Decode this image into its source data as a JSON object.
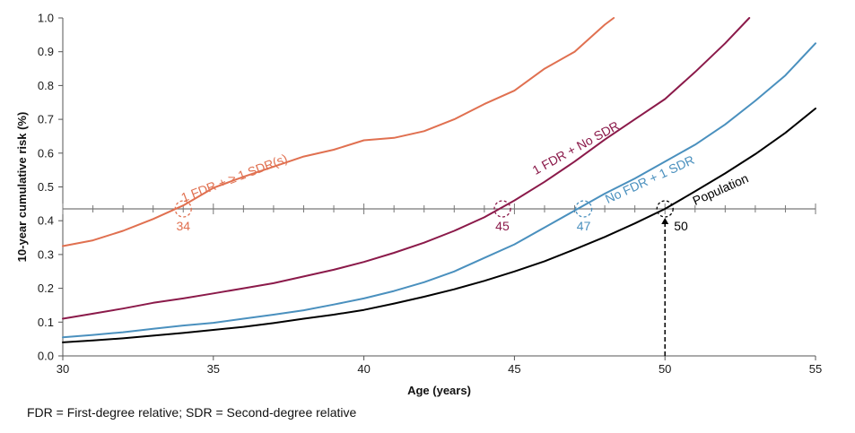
{
  "chart_data": {
    "type": "line",
    "xlabel": "Age (years)",
    "ylabel": "10-year cumulative risk (%)",
    "xlim": [
      30,
      55
    ],
    "ylim": [
      0,
      1.0
    ],
    "x_ticks": [
      "30",
      "35",
      "40",
      "45",
      "50",
      "55"
    ],
    "y_ticks": [
      "0.0",
      "0.1",
      "0.2",
      "0.3",
      "0.4",
      "0.5",
      "0.6",
      "0.7",
      "0.8",
      "0.9",
      "1.0"
    ],
    "reference_line_y": 0.435,
    "legend": "none (series labelled inline)",
    "grid": false,
    "series": [
      {
        "name": "1 FDR + ≥ 1 SDR(s)",
        "color": "#E07050",
        "x": [
          30,
          31,
          32,
          33,
          34,
          35,
          36,
          37,
          38,
          39,
          40,
          41,
          42,
          43,
          44,
          45,
          46,
          47,
          48,
          48.3
        ],
        "y": [
          0.325,
          0.342,
          0.37,
          0.405,
          0.445,
          0.497,
          0.53,
          0.56,
          0.59,
          0.61,
          0.638,
          0.645,
          0.665,
          0.7,
          0.745,
          0.785,
          0.85,
          0.9,
          0.98,
          1.0
        ]
      },
      {
        "name": "1 FDR + No SDR",
        "color": "#8B1A4A",
        "x": [
          30,
          31,
          32,
          33,
          34,
          35,
          36,
          37,
          38,
          39,
          40,
          41,
          42,
          43,
          44,
          45,
          46,
          47,
          48,
          49,
          50,
          51,
          52,
          52.8
        ],
        "y": [
          0.11,
          0.125,
          0.14,
          0.157,
          0.17,
          0.185,
          0.2,
          0.215,
          0.235,
          0.255,
          0.278,
          0.305,
          0.335,
          0.37,
          0.41,
          0.46,
          0.515,
          0.575,
          0.64,
          0.7,
          0.76,
          0.84,
          0.925,
          1.0
        ]
      },
      {
        "name": "No FDR + 1 SDR",
        "color": "#4A90BE",
        "x": [
          30,
          31,
          32,
          33,
          34,
          35,
          36,
          37,
          38,
          39,
          40,
          41,
          42,
          43,
          44,
          45,
          46,
          47,
          48,
          49,
          50,
          51,
          52,
          53,
          54,
          55
        ],
        "y": [
          0.055,
          0.062,
          0.07,
          0.08,
          0.09,
          0.098,
          0.11,
          0.122,
          0.135,
          0.152,
          0.17,
          0.192,
          0.218,
          0.25,
          0.29,
          0.33,
          0.38,
          0.43,
          0.48,
          0.525,
          0.575,
          0.625,
          0.685,
          0.755,
          0.83,
          0.925
        ]
      },
      {
        "name": "Population",
        "color": "#000000",
        "x": [
          30,
          31,
          32,
          33,
          34,
          35,
          36,
          37,
          38,
          39,
          40,
          41,
          42,
          43,
          44,
          45,
          46,
          47,
          48,
          49,
          50,
          51,
          52,
          53,
          54,
          55
        ],
        "y": [
          0.04,
          0.046,
          0.052,
          0.06,
          0.068,
          0.077,
          0.086,
          0.097,
          0.11,
          0.122,
          0.136,
          0.155,
          0.175,
          0.197,
          0.222,
          0.25,
          0.28,
          0.315,
          0.352,
          0.392,
          0.435,
          0.487,
          0.54,
          0.597,
          0.66,
          0.732
        ]
      }
    ],
    "annotations": [
      {
        "label": "34",
        "x": 34,
        "color": "#E07050"
      },
      {
        "label": "45",
        "x": 44.6,
        "color": "#8B1A4A"
      },
      {
        "label": "47",
        "x": 47.3,
        "color": "#4A90BE"
      },
      {
        "label": "50",
        "x": 50,
        "color": "#000000",
        "arrow": true
      }
    ]
  },
  "footnote": "FDR = First-degree relative; SDR = Second-degree relative"
}
